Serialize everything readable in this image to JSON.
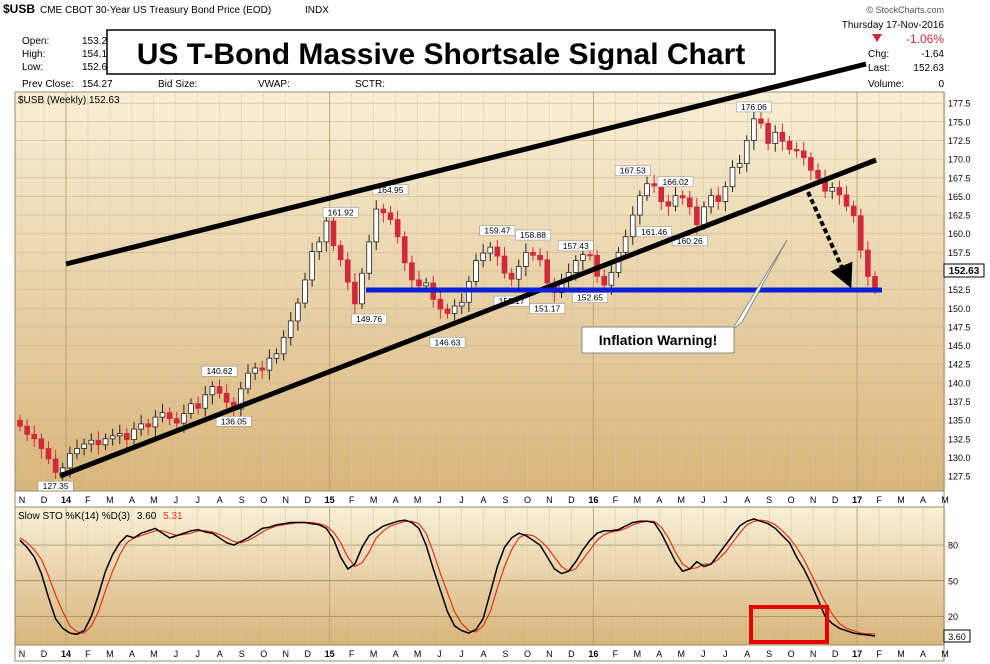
{
  "header": {
    "symbol": "$USB",
    "description": "CME CBOT 30-Year US Treasury Bond Price (EOD)",
    "exchange": "INDX",
    "source": "© StockCharts.com",
    "date": "Thursday 17-Nov-2016",
    "open_label": "Open:",
    "open_value": "153.2",
    "high_label": "High:",
    "high_value": "154.1",
    "low_label": "Low:",
    "low_value": "152.6",
    "prev_close_label": "Prev Close:",
    "prev_close_value": "154.27",
    "bid_size_label": "Bid Size:",
    "vwap_label": "VWAP:",
    "sctr_label": "SCTR:",
    "change_pct": "-1.06%",
    "chg_label": "Chg:",
    "chg_value": "-1.64",
    "last_label": "Last:",
    "last_value": "152.63",
    "volume_label": "Volume:",
    "volume_value": "0"
  },
  "colors": {
    "panel_top": "#f9efd6",
    "panel_bottom": "#d8b57a",
    "up_candle": "#ffffff",
    "down_candle": "#d2283c",
    "trendline": "#000000",
    "support_line": "#0b1fd6",
    "stoch_k": "#000000",
    "stoch_d": "#e0341c",
    "highlight_box": "#e60000",
    "negative": "#d2283c"
  },
  "chart_data": [
    {
      "type": "candlestick",
      "title": "US T-Bond Massive Shortsale Signal Chart",
      "legend": "$USB (Weekly) 152.63",
      "y_ticks": [
        "127.5",
        "130.0",
        "132.5",
        "135.0",
        "137.5",
        "140.0",
        "142.5",
        "145.0",
        "147.5",
        "150.0",
        "152.5",
        "155.0",
        "157.5",
        "160.0",
        "162.5",
        "165.0",
        "167.5",
        "170.0",
        "172.5",
        "175.0",
        "177.5"
      ],
      "ylim": [
        125.5,
        179.0
      ],
      "x_labels": [
        "N",
        "D",
        "14",
        "F",
        "M",
        "A",
        "M",
        "J",
        "J",
        "A",
        "S",
        "O",
        "N",
        "D",
        "15",
        "F",
        "M",
        "A",
        "M",
        "J",
        "J",
        "A",
        "S",
        "O",
        "N",
        "D",
        "16",
        "F",
        "M",
        "A",
        "M",
        "J",
        "J",
        "A",
        "S",
        "O",
        "N",
        "D",
        "17",
        "F",
        "M",
        "A",
        "M"
      ],
      "last_price_label": "152.63",
      "close_series": [
        134.2,
        133.1,
        132.5,
        131.2,
        129.8,
        128.0,
        128.6,
        130.5,
        131.2,
        131.8,
        132.3,
        131.7,
        132.5,
        132.9,
        133.2,
        132.4,
        133.8,
        134.5,
        134.1,
        135.4,
        136.0,
        135.2,
        134.6,
        135.9,
        137.2,
        136.6,
        138.4,
        139.5,
        138.6,
        137.4,
        136.5,
        139.2,
        141.3,
        142.0,
        141.7,
        143.3,
        143.9,
        146.1,
        148.3,
        150.7,
        153.8,
        157.6,
        158.9,
        161.7,
        158.4,
        156.5,
        153.5,
        150.6,
        154.7,
        158.9,
        163.3,
        162.8,
        161.9,
        159.6,
        156.1,
        153.8,
        153.0,
        153.4,
        151.2,
        149.9,
        149.3,
        150.3,
        150.8,
        153.6,
        156.4,
        157.4,
        158.2,
        157.0,
        154.7,
        153.9,
        155.6,
        157.5,
        157.1,
        156.5,
        153.4,
        152.1,
        153.7,
        154.8,
        156.4,
        157.2,
        157.1,
        154.3,
        153.1,
        154.8,
        157.5,
        159.6,
        162.5,
        165.1,
        166.7,
        166.4,
        164.3,
        163.7,
        165.1,
        164.8,
        163.6,
        161.2,
        163.6,
        165.1,
        164.3,
        166.3,
        168.9,
        169.4,
        172.5,
        175.4,
        174.8,
        172.1,
        173.6,
        172.4,
        171.3,
        171.1,
        170.2,
        168.5,
        167.4,
        165.7,
        166.2,
        165.2,
        163.7,
        162.4,
        157.8,
        154.27,
        152.63
      ],
      "labels": [
        "127.35",
        "136.05",
        "140.62",
        "149.76",
        "161.92",
        "164.95",
        "146.63",
        "159.47",
        "158.88",
        "152.17",
        "157.43",
        "151.17",
        "152.65",
        "167.53",
        "166.02",
        "161.46",
        "160.26",
        "176.06"
      ],
      "annotation": "Inflation Warning!"
    },
    {
      "type": "line",
      "legend_prefix": "Slow STO %K(14) %D(3)",
      "k_value": "3.60",
      "d_value": "5.31",
      "y_ticks": [
        "20",
        "50",
        "80"
      ],
      "ylim": [
        -4,
        112
      ],
      "last_value_label": "3.60",
      "series": [
        {
          "name": "%K",
          "values": [
            84,
            78,
            70,
            56,
            36,
            18,
            10,
            6,
            5,
            8,
            20,
            38,
            58,
            72,
            82,
            88,
            86,
            90,
            92,
            94,
            90,
            86,
            88,
            90,
            92,
            93,
            91,
            90,
            86,
            82,
            80,
            83,
            86,
            90,
            94,
            95,
            97,
            98,
            99,
            99,
            99,
            98,
            97,
            94,
            85,
            70,
            60,
            64,
            78,
            88,
            92,
            96,
            98,
            100,
            101,
            99,
            94,
            80,
            60,
            42,
            24,
            12,
            8,
            6,
            9,
            18,
            40,
            62,
            78,
            86,
            90,
            88,
            84,
            80,
            70,
            60,
            56,
            58,
            66,
            76,
            84,
            90,
            92,
            92,
            93,
            96,
            99,
            100,
            100,
            99,
            90,
            78,
            66,
            58,
            60,
            66,
            62,
            64,
            72,
            80,
            88,
            96,
            100,
            102,
            100,
            98,
            94,
            88,
            82,
            70,
            60,
            48,
            34,
            20,
            14,
            10,
            8,
            6,
            5,
            4.4,
            3.6
          ]
        },
        {
          "name": "%D",
          "values": [
            86,
            82,
            76,
            68,
            54,
            38,
            24,
            12,
            7,
            6,
            12,
            24,
            42,
            58,
            72,
            82,
            86,
            88,
            90,
            92,
            92,
            90,
            88,
            89,
            90,
            92,
            92,
            91,
            89,
            86,
            83,
            82,
            84,
            87,
            91,
            94,
            96,
            97,
            98,
            99,
            99,
            99,
            98,
            96,
            91,
            82,
            70,
            62,
            65,
            74,
            86,
            92,
            96,
            98,
            100,
            100,
            98,
            90,
            74,
            56,
            40,
            24,
            14,
            8,
            7,
            12,
            24,
            44,
            62,
            76,
            86,
            89,
            88,
            84,
            78,
            70,
            62,
            58,
            60,
            68,
            76,
            84,
            89,
            91,
            92,
            94,
            97,
            99,
            100,
            100,
            95,
            86,
            74,
            64,
            60,
            61,
            64,
            64,
            68,
            74,
            82,
            90,
            97,
            100,
            101,
            100,
            97,
            92,
            86,
            78,
            68,
            56,
            44,
            32,
            22,
            14,
            10,
            8,
            6,
            5.3,
            5.31
          ]
        }
      ]
    }
  ]
}
